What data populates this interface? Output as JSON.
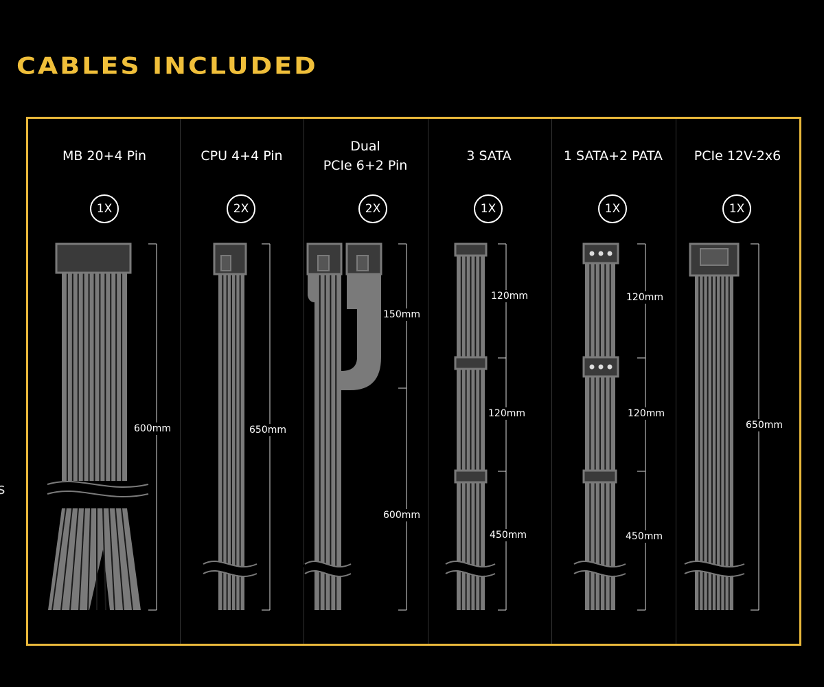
{
  "title": "CABLES INCLUDED",
  "edge_text": "s",
  "accent_color": "#e9b83b",
  "cable_color": "#7a7a7a",
  "columns": [
    {
      "name": "MB 20+4 Pin",
      "qty": "1X",
      "lengths": [
        "600mm"
      ]
    },
    {
      "name": "CPU 4+4 Pin",
      "qty": "2X",
      "lengths": [
        "650mm"
      ]
    },
    {
      "name_line1": "Dual",
      "name_line2": "PCIe 6+2 Pin",
      "qty": "2X",
      "lengths": [
        "150mm",
        "600mm"
      ]
    },
    {
      "name": "3 SATA",
      "qty": "1X",
      "lengths": [
        "120mm",
        "120mm",
        "450mm"
      ]
    },
    {
      "name": "1 SATA+2 PATA",
      "qty": "1X",
      "lengths": [
        "120mm",
        "120mm",
        "450mm"
      ]
    },
    {
      "name": "PCIe 12V-2x6",
      "qty": "1X",
      "lengths": [
        "650mm"
      ]
    }
  ]
}
